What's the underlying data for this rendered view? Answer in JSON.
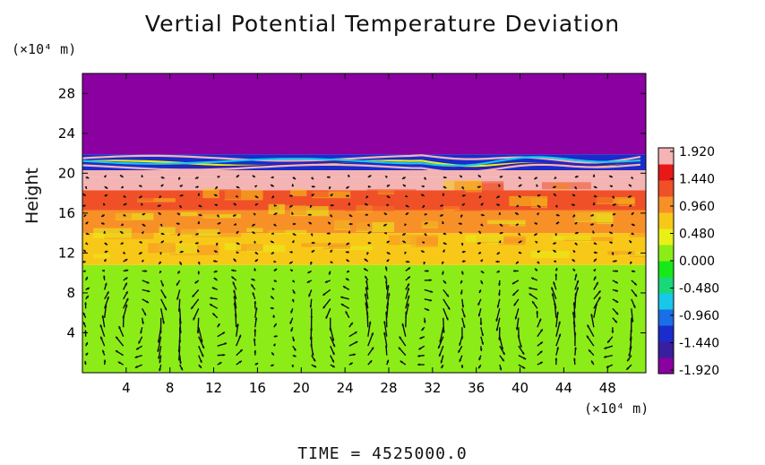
{
  "chart_data": {
    "type": "heatmap",
    "title": "Vertial Potential Temperature Deviation",
    "xlabel": "",
    "ylabel": "Height",
    "x_unit": "(×10⁴ m)",
    "y_unit": "(×10⁴ m)",
    "footer": "TIME = 4525000.0",
    "xlim": [
      0,
      51.5
    ],
    "ylim": [
      0,
      30
    ],
    "x_ticks": [
      "4",
      "8",
      "12",
      "16",
      "20",
      "24",
      "28",
      "32",
      "36",
      "40",
      "44",
      "48"
    ],
    "y_ticks": [
      "4",
      "8",
      "12",
      "16",
      "20",
      "24",
      "28"
    ],
    "colorbar": {
      "ticks": [
        "1.920",
        "1.440",
        "0.960",
        "0.480",
        "0.000",
        "-0.480",
        "-0.960",
        "-1.440",
        "-1.920"
      ],
      "range": [
        -1.92,
        1.92
      ],
      "colors": [
        "#8a00a0",
        "#3a1ea0",
        "#1a2ccc",
        "#1a6ee8",
        "#18c8e8",
        "#18d878",
        "#18e818",
        "#8cec18",
        "#e8f018",
        "#f8c818",
        "#f89028",
        "#f05028",
        "#e81818",
        "#f4b4b4"
      ]
    },
    "bands": [
      {
        "y_from": 0,
        "y_to": 10.8,
        "value": 0.0
      },
      {
        "y_from": 10.8,
        "y_to": 14.0,
        "value": 0.75
      },
      {
        "y_from": 14.0,
        "y_to": 16.3,
        "value": 1.05
      },
      {
        "y_from": 16.3,
        "y_to": 18.3,
        "value": 1.35
      },
      {
        "y_from": 18.3,
        "y_to": 19.6,
        "value": 1.65
      },
      {
        "y_from": 19.6,
        "y_to": 20.3,
        "value": 1.9
      },
      {
        "y_from": 20.3,
        "y_to": 21.9,
        "value": -1.2
      },
      {
        "y_from": 21.9,
        "y_to": 30,
        "value": -1.92
      }
    ],
    "vector_field": "wind vectors, circulation cells near x = 24, 31, 41 (height 0–12)"
  }
}
